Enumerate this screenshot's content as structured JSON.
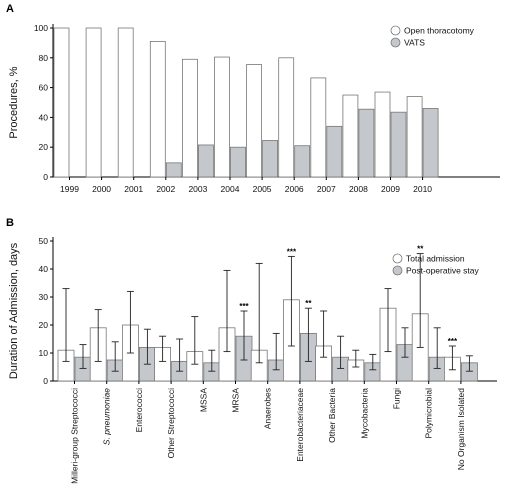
{
  "chart_data": [
    {
      "panel_label": "A",
      "type": "bar",
      "ylabel": "Procedures, %",
      "ylim": [
        0,
        100
      ],
      "yticks": [
        0,
        20,
        40,
        60,
        80,
        100
      ],
      "categories": [
        "1999",
        "2000",
        "2001",
        "2002",
        "2003",
        "2004",
        "2005",
        "2006",
        "2007",
        "2008",
        "2009",
        "2010"
      ],
      "series": [
        {
          "name": "Open thoracotomy",
          "color": "#ffffff",
          "values": [
            100,
            100,
            100,
            91,
            79,
            80.5,
            75.5,
            80,
            66.5,
            55,
            57,
            54
          ]
        },
        {
          "name": "VATS",
          "color": "#c4c8cc",
          "values": [
            0,
            0,
            0,
            9.5,
            21.5,
            20,
            24.5,
            21,
            34,
            45.5,
            43.5,
            46
          ]
        }
      ],
      "legend": "top-right"
    },
    {
      "panel_label": "B",
      "type": "bar",
      "ylabel": "Duration of Admission, days",
      "ylim": [
        0,
        50
      ],
      "yticks": [
        0,
        10,
        20,
        30,
        40,
        50
      ],
      "categories": [
        "Milleri-group Streptococci",
        "S. pneumoniae",
        "Enterococci",
        "Other Streptococci",
        "MSSA",
        "MRSA",
        "Anaerobes",
        "Enterobacteriaceae",
        "Other Bacteria",
        "Mycobacteria",
        "Fungi",
        "Polymicrobial",
        "No Organism Isolated"
      ],
      "series": [
        {
          "name": "Total admission",
          "color": "#ffffff",
          "values": [
            11,
            19,
            20,
            12,
            10.5,
            19,
            11,
            29,
            12.5,
            7.5,
            26,
            24,
            8.5
          ],
          "err_low": [
            7,
            7,
            10,
            7,
            6,
            10.5,
            6.5,
            12.5,
            8.5,
            5,
            10.5,
            12,
            4
          ],
          "err_high": [
            33,
            25.5,
            32,
            16,
            23,
            39.5,
            42,
            44.5,
            25,
            11,
            33,
            45.5,
            12.5
          ],
          "annotations": [
            "",
            "",
            "",
            "",
            "",
            "",
            "",
            "***",
            "",
            "",
            "",
            "**",
            "***"
          ]
        },
        {
          "name": "Post-operative stay",
          "color": "#c4c8cc",
          "values": [
            8.5,
            7.5,
            12,
            7,
            6.5,
            16,
            7.5,
            17,
            8.5,
            6.5,
            13,
            8.5,
            6.5
          ],
          "err_low": [
            4.5,
            3.5,
            6,
            3.5,
            3.5,
            7.5,
            4,
            7,
            4.5,
            4,
            8.5,
            4.5,
            3.5
          ],
          "err_high": [
            13,
            14,
            18.5,
            15,
            11,
            25,
            17,
            26,
            16,
            9.5,
            19,
            19,
            9
          ],
          "annotations": [
            "",
            "",
            "",
            "",
            "",
            "***",
            "",
            "**",
            "",
            "",
            "",
            "",
            ""
          ]
        }
      ],
      "legend": "top-right"
    }
  ]
}
